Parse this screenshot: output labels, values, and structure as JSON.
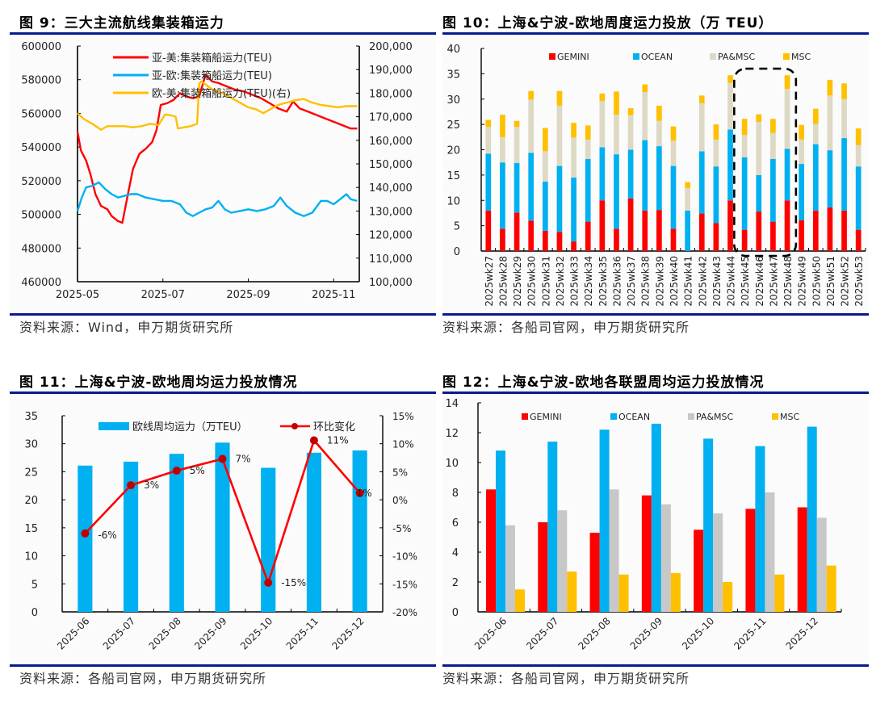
{
  "figures": {
    "fig9": {
      "title": "图 9：三大主流航线集装箱运力",
      "source": "资料来源：Wind，申万期货研究所"
    },
    "fig10": {
      "title": "图 10：上海&宁波-欧地周度运力投放（万 TEU）",
      "source": "资料来源：各船司官网，申万期货研究所"
    },
    "fig11": {
      "title": "图 11：上海&宁波-欧地周均运力投放情况",
      "source": "资料来源：各船司官网，申万期货研究所"
    },
    "fig12": {
      "title": "图 12：上海&宁波-欧地各联盟周均运力投放情况",
      "source": "资料来源：各船司官网，申万期货研究所"
    }
  },
  "colors": {
    "red": "#ff0000",
    "blue": "#00b0f0",
    "yellow": "#ffc000",
    "beige": "#ddd9c4",
    "gray": "#c8c8c8",
    "dark_red": "#c00000",
    "rule": "#0a1a8c"
  },
  "chart_data": [
    {
      "id": "fig9",
      "type": "line",
      "title": "三大主流航线集装箱运力",
      "x_ticks": [
        "2025-05",
        "2025-07",
        "2025-09",
        "2025-11"
      ],
      "x_range": [
        0,
        6.6
      ],
      "y_left": {
        "ylim": [
          460000,
          600000
        ],
        "ticks": [
          460000,
          480000,
          500000,
          520000,
          540000,
          560000,
          580000,
          600000
        ]
      },
      "y_right": {
        "ylim": [
          100000,
          200000
        ],
        "ticks": [
          "100,000",
          "110,000",
          "120,000",
          "130,000",
          "140,000",
          "150,000",
          "160,000",
          "170,000",
          "180,000",
          "190,000",
          "200,000"
        ]
      },
      "legend_position": "top-center",
      "series": [
        {
          "name": "亚-美:集装箱船运力(TEU)",
          "color": "#ff0000",
          "axis": "left",
          "points": [
            [
              0,
              549000
            ],
            [
              0.08,
              538000
            ],
            [
              0.2,
              532000
            ],
            [
              0.3,
              524000
            ],
            [
              0.42,
              512000
            ],
            [
              0.55,
              505000
            ],
            [
              0.7,
              503000
            ],
            [
              0.8,
              499000
            ],
            [
              0.95,
              496000
            ],
            [
              1.05,
              495000
            ],
            [
              1.15,
              508000
            ],
            [
              1.3,
              527000
            ],
            [
              1.45,
              536000
            ],
            [
              1.6,
              539000
            ],
            [
              1.75,
              543000
            ],
            [
              1.85,
              550000
            ],
            [
              1.95,
              565000
            ],
            [
              2.1,
              566000
            ],
            [
              2.25,
              568000
            ],
            [
              2.4,
              572000
            ],
            [
              2.55,
              570000
            ],
            [
              2.7,
              569000
            ],
            [
              2.85,
              570000
            ],
            [
              3.0,
              583000
            ],
            [
              3.15,
              579000
            ],
            [
              3.3,
              578000
            ],
            [
              3.5,
              576000
            ],
            [
              3.7,
              574000
            ],
            [
              3.9,
              573000
            ],
            [
              4.1,
              571000
            ],
            [
              4.3,
              569000
            ],
            [
              4.5,
              566000
            ],
            [
              4.7,
              563000
            ],
            [
              4.9,
              561000
            ],
            [
              5.05,
              567000
            ],
            [
              5.2,
              563000
            ],
            [
              5.4,
              561000
            ],
            [
              5.6,
              559000
            ],
            [
              5.8,
              557000
            ],
            [
              6.0,
              555000
            ],
            [
              6.2,
              553000
            ],
            [
              6.4,
              551000
            ],
            [
              6.55,
              551000
            ]
          ]
        },
        {
          "name": "亚-欧:集装箱船运力(TEU)",
          "color": "#00b0f0",
          "axis": "left",
          "points": [
            [
              0,
              502000
            ],
            [
              0.1,
              510000
            ],
            [
              0.2,
              516000
            ],
            [
              0.35,
              517000
            ],
            [
              0.5,
              519000
            ],
            [
              0.65,
              515000
            ],
            [
              0.8,
              512000
            ],
            [
              0.95,
              510000
            ],
            [
              1.1,
              511000
            ],
            [
              1.25,
              512000
            ],
            [
              1.4,
              512000
            ],
            [
              1.6,
              510000
            ],
            [
              1.8,
              509000
            ],
            [
              2.0,
              508000
            ],
            [
              2.2,
              508000
            ],
            [
              2.4,
              506000
            ],
            [
              2.55,
              501000
            ],
            [
              2.7,
              499000
            ],
            [
              2.85,
              501000
            ],
            [
              3.0,
              503000
            ],
            [
              3.15,
              504000
            ],
            [
              3.3,
              508000
            ],
            [
              3.45,
              503000
            ],
            [
              3.6,
              501000
            ],
            [
              3.8,
              502000
            ],
            [
              4.0,
              503000
            ],
            [
              4.2,
              502000
            ],
            [
              4.4,
              503000
            ],
            [
              4.6,
              505000
            ],
            [
              4.75,
              510000
            ],
            [
              4.9,
              505000
            ],
            [
              5.1,
              501000
            ],
            [
              5.3,
              499000
            ],
            [
              5.5,
              501000
            ],
            [
              5.7,
              508000
            ],
            [
              5.85,
              508000
            ],
            [
              6.0,
              506000
            ],
            [
              6.15,
              509000
            ],
            [
              6.3,
              512000
            ],
            [
              6.4,
              509000
            ],
            [
              6.55,
              508000
            ]
          ]
        },
        {
          "name": "欧-美:集装箱船运力(TEU)(右)",
          "color": "#ffc000",
          "axis": "right",
          "points": [
            [
              0,
              171500
            ],
            [
              0.15,
              169000
            ],
            [
              0.35,
              167000
            ],
            [
              0.55,
              164500
            ],
            [
              0.7,
              166000
            ],
            [
              0.9,
              166000
            ],
            [
              1.1,
              166000
            ],
            [
              1.3,
              165500
            ],
            [
              1.5,
              166000
            ],
            [
              1.7,
              167000
            ],
            [
              1.9,
              166500
            ],
            [
              2.05,
              171000
            ],
            [
              2.2,
              170500
            ],
            [
              2.3,
              170000
            ],
            [
              2.35,
              165000
            ],
            [
              2.5,
              165500
            ],
            [
              2.65,
              166000
            ],
            [
              2.8,
              167000
            ],
            [
              2.85,
              184000
            ],
            [
              2.9,
              185000
            ],
            [
              3.05,
              183000
            ],
            [
              3.2,
              181000
            ],
            [
              3.4,
              180000
            ],
            [
              3.6,
              178000
            ],
            [
              3.8,
              176000
            ],
            [
              4.0,
              174000
            ],
            [
              4.2,
              173000
            ],
            [
              4.35,
              171500
            ],
            [
              4.5,
              173000
            ],
            [
              4.7,
              175000
            ],
            [
              4.9,
              176000
            ],
            [
              5.1,
              177000
            ],
            [
              5.3,
              177500
            ],
            [
              5.5,
              176000
            ],
            [
              5.7,
              175000
            ],
            [
              5.9,
              174500
            ],
            [
              6.1,
              174000
            ],
            [
              6.3,
              174500
            ],
            [
              6.55,
              174500
            ]
          ]
        }
      ]
    },
    {
      "id": "fig10",
      "type": "bar",
      "stacked": true,
      "title": "上海&宁波-欧地周度运力投放（万 TEU）",
      "ylim": [
        0,
        40
      ],
      "y_ticks": [
        0,
        5,
        10,
        15,
        20,
        25,
        30,
        35,
        40
      ],
      "legend_position": "top",
      "categories": [
        "2025wk27",
        "2025wk28",
        "2025wk29",
        "2025wk30",
        "2025wk31",
        "2025wk32",
        "2025wk33",
        "2025wk34",
        "2025wk35",
        "2025wk36",
        "2025wk37",
        "2025wk38",
        "2025wk39",
        "2025wk40",
        "2025wk41",
        "2025wk42",
        "2025wk43",
        "2025wk44",
        "2025wk45",
        "2025wk46",
        "2025wk47",
        "2025wk48",
        "2025wk49",
        "2025wk50",
        "2025wk51",
        "2025wk52",
        "2025wk53"
      ],
      "series": [
        {
          "name": "GEMINI",
          "color": "#ff0000",
          "values": [
            8.0,
            4.4,
            7.6,
            6.0,
            4.0,
            3.8,
            1.9,
            5.8,
            10.0,
            4.4,
            10.4,
            8.0,
            8.1,
            4.4,
            0,
            7.4,
            5.5,
            10.0,
            4.2,
            7.8,
            5.8,
            10.0,
            6.1,
            8.0,
            8.6,
            8.0,
            4.2
          ]
        },
        {
          "name": "OCEAN",
          "color": "#00b0f0",
          "values": [
            11.2,
            13.1,
            9.8,
            13.4,
            9.7,
            13.0,
            12.6,
            12.4,
            10.5,
            14.7,
            9.6,
            13.9,
            12.6,
            12.4,
            8.0,
            12.3,
            11.2,
            14.0,
            14.3,
            7.2,
            12.4,
            10.2,
            11.1,
            13.1,
            11.3,
            14.3,
            12.5
          ]
        },
        {
          "name": "PA&MSC",
          "color": "#ddd9c4",
          "values": [
            5.3,
            5.0,
            7.1,
            10.5,
            6.0,
            11.9,
            7.9,
            3.8,
            9.1,
            7.8,
            6.8,
            9.5,
            5.0,
            5.0,
            4.4,
            9.5,
            5.3,
            9.2,
            4.4,
            10.5,
            5.1,
            11.8,
            4.8,
            4.0,
            10.8,
            7.7,
            4.2
          ]
        },
        {
          "name": "MSC",
          "color": "#ffc000",
          "values": [
            1.4,
            4.4,
            1.2,
            1.7,
            4.6,
            2.9,
            2.9,
            2.8,
            1.5,
            4.6,
            1.4,
            1.5,
            3.0,
            2.8,
            1.2,
            1.5,
            3.0,
            1.5,
            3.2,
            1.5,
            2.8,
            2.7,
            2.9,
            3.0,
            3.1,
            3.1,
            3.3
          ]
        }
      ],
      "annotation": "dashed rounded box around 2025wk45–2025wk48"
    },
    {
      "id": "fig11",
      "type": "bar",
      "title": "上海&宁波-欧地周均运力投放情况",
      "categories": [
        "2025-06",
        "2025-07",
        "2025-08",
        "2025-09",
        "2025-10",
        "2025-11",
        "2025-12"
      ],
      "y_left": {
        "ylim": [
          0,
          35
        ],
        "ticks": [
          0,
          5,
          10,
          15,
          20,
          25,
          30,
          35
        ]
      },
      "y_right": {
        "ylim": [
          -20,
          15
        ],
        "ticks": [
          "-20%",
          "-15%",
          "-10%",
          "-5%",
          "0%",
          "5%",
          "10%",
          "15%"
        ]
      },
      "legend_position": "top",
      "series": [
        {
          "name": "欧线周均运力（万TEU）",
          "type": "bar",
          "axis": "left",
          "color": "#00b0f0",
          "values": [
            26.1,
            26.8,
            28.2,
            30.2,
            25.7,
            28.4,
            28.8
          ]
        },
        {
          "name": "环比变化",
          "type": "line",
          "axis": "right",
          "color": "#ff0000",
          "marker_color": "#c00000",
          "values": [
            -6.0,
            2.6,
            5.2,
            7.3,
            -14.8,
            10.6,
            1.2
          ],
          "labels": [
            "-6%",
            "3%",
            "5%",
            "7%",
            "-15%",
            "11%",
            "1%"
          ]
        }
      ]
    },
    {
      "id": "fig12",
      "type": "bar",
      "title": "上海&宁波-欧地各联盟周均运力投放情况",
      "categories": [
        "2025-06",
        "2025-07",
        "2025-08",
        "2025-09",
        "2025-10",
        "2025-11",
        "2025-12"
      ],
      "ylim": [
        0,
        14
      ],
      "y_ticks": [
        0,
        2,
        4,
        6,
        8,
        10,
        12,
        14
      ],
      "legend_position": "top",
      "series": [
        {
          "name": "GEMINI",
          "color": "#ff0000",
          "values": [
            8.2,
            6.0,
            5.3,
            7.8,
            5.5,
            6.9,
            7.0
          ]
        },
        {
          "name": "OCEAN",
          "color": "#00b0f0",
          "values": [
            10.8,
            11.4,
            12.2,
            12.6,
            11.6,
            11.1,
            12.4
          ]
        },
        {
          "name": "PA&MSC",
          "color": "#c8c8c8",
          "values": [
            5.8,
            6.8,
            8.2,
            7.2,
            6.6,
            8.0,
            6.3
          ]
        },
        {
          "name": "MSC",
          "color": "#ffc000",
          "values": [
            1.5,
            2.7,
            2.5,
            2.6,
            2.0,
            2.5,
            3.1
          ]
        }
      ]
    }
  ]
}
